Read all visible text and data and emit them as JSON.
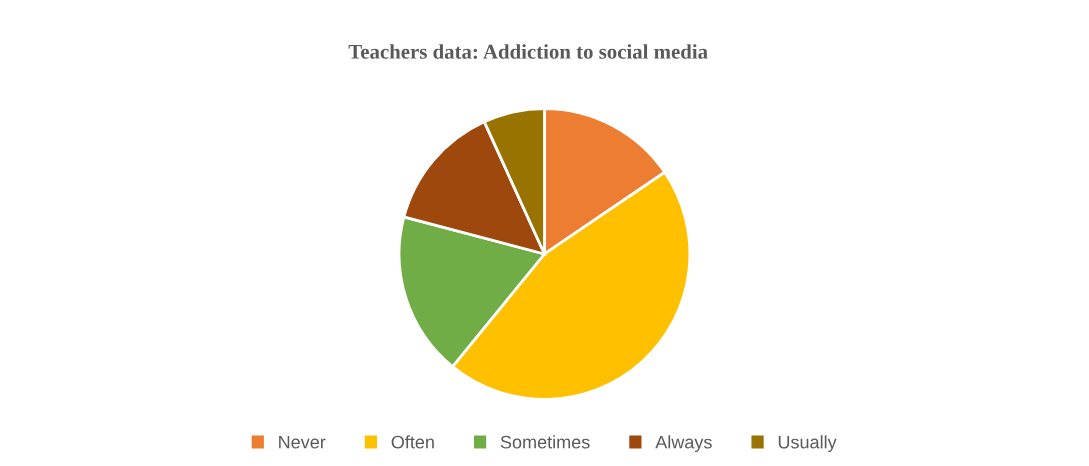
{
  "chart_data": {
    "type": "pie",
    "title": "Teachers data: Addiction to social media",
    "categories": [
      "Never",
      "Often",
      "Sometimes",
      "Always",
      "Usually"
    ],
    "values": [
      15.5,
      45.4,
      18.2,
      14.1,
      6.8
    ],
    "colors": [
      "#ed7d31",
      "#ffc000",
      "#70ad47",
      "#9e480e",
      "#997300"
    ],
    "legend": "bottom"
  }
}
